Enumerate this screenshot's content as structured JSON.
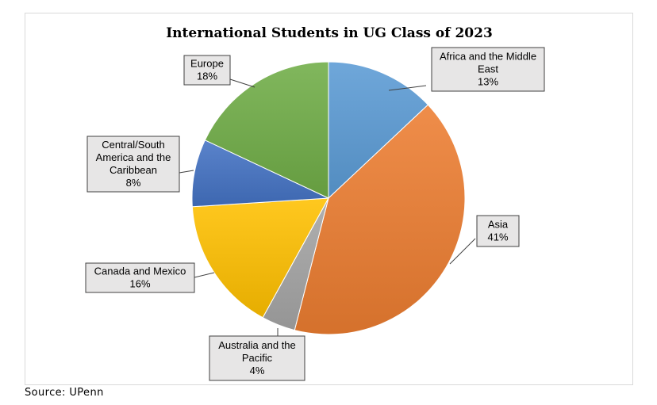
{
  "chart_data": {
    "type": "pie",
    "title": "International Students in UG Class of 2023",
    "slices": [
      {
        "label": "Africa and the Middle East",
        "value": 13,
        "value_label": "13%",
        "color": "#5b9bd5"
      },
      {
        "label": "Asia",
        "value": 41,
        "value_label": "41%",
        "color": "#ed7d31"
      },
      {
        "label": "Australia and the Pacific",
        "value": 4,
        "value_label": "4%",
        "color": "#a5a5a5"
      },
      {
        "label": "Canada and Mexico",
        "value": 16,
        "value_label": "16%",
        "color": "#ffc000"
      },
      {
        "label": "Central/South America and the Caribbean",
        "value": 8,
        "value_label": "8%",
        "color": "#4472c4"
      },
      {
        "label": "Europe",
        "value": 18,
        "value_label": "18%",
        "color": "#70ad47"
      }
    ],
    "start_angle_deg": 0,
    "direction": "clockwise",
    "legend": "none"
  },
  "source": "Source: UPenn"
}
